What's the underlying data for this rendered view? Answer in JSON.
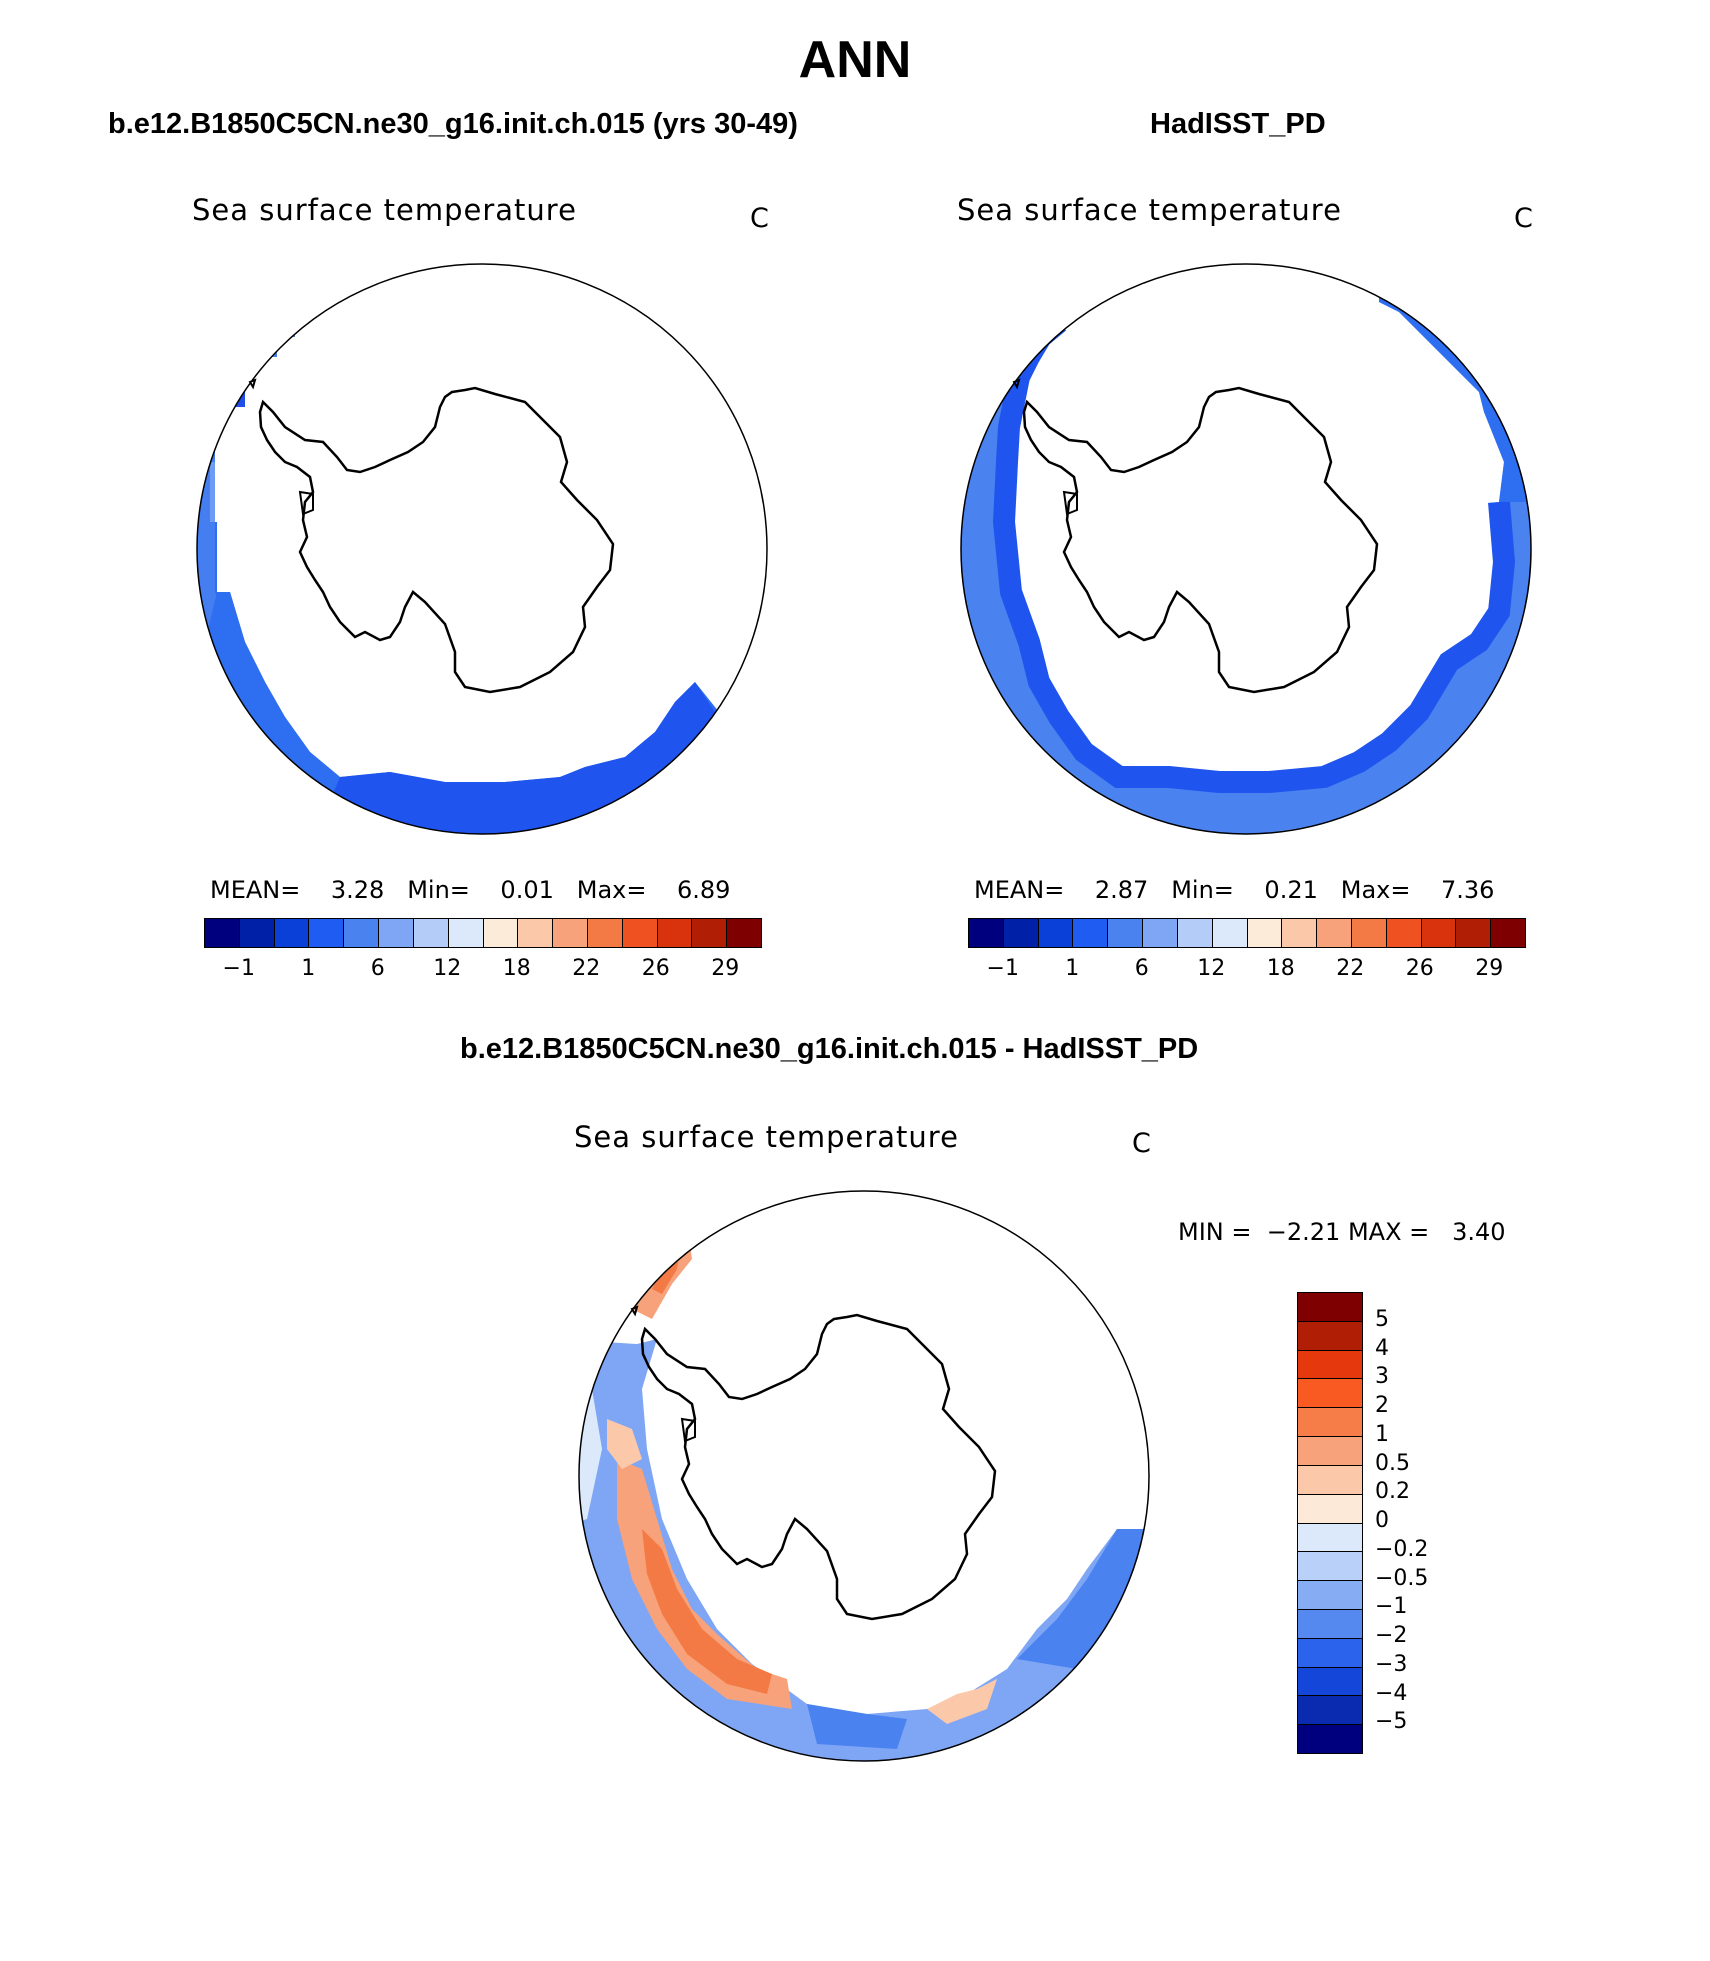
{
  "main_title": "ANN",
  "panel_model": {
    "case_title": "b.e12.B1850C5CN.ne30_g16.init.ch.015 (yrs 30-49)",
    "field": "Sea surface temperature",
    "units": "C",
    "mean_label": "MEAN=",
    "mean_value": "3.28",
    "min_label": "Min=",
    "min_value": "0.01",
    "max_label": "Max=",
    "max_value": "6.89"
  },
  "panel_obs": {
    "case_title": "HadISST_PD",
    "field": "Sea surface temperature",
    "units": "C",
    "mean_label": "MEAN=",
    "mean_value": "2.87",
    "min_label": "Min=",
    "min_value": "0.21",
    "max_label": "Max=",
    "max_value": "7.36"
  },
  "panel_diff": {
    "case_title": "b.e12.B1850C5CN.ne30_g16.init.ch.015 - HadISST_PD",
    "field": "Sea surface temperature",
    "units": "C",
    "min_label": "MIN =",
    "min_value": "−2.21",
    "max_label": "MAX =",
    "max_value": "3.40"
  },
  "abs_colorbar": {
    "colors": [
      "#00007f",
      "#0020a8",
      "#0a3fd8",
      "#1f5cf2",
      "#4a82f0",
      "#7ea6f4",
      "#b4ccf8",
      "#dce9fb",
      "#fdebd9",
      "#fbc9aa",
      "#f7a27a",
      "#f47a45",
      "#ef5220",
      "#d9330e",
      "#b01e06",
      "#7f0000"
    ],
    "labels": [
      "−1",
      "1",
      "6",
      "12",
      "18",
      "22",
      "26",
      "29"
    ]
  },
  "diff_colorbar": {
    "colors": [
      "#7f0000",
      "#b01e06",
      "#e5380c",
      "#f95a22",
      "#f77d48",
      "#f7a27a",
      "#fbc8aa",
      "#fde9d8",
      "#dce9fb",
      "#b9d0f8",
      "#86acf4",
      "#5589f0",
      "#2c63ec",
      "#1446d9",
      "#0a2ab0",
      "#00007f"
    ],
    "labels": [
      "5",
      "4",
      "3",
      "2",
      "1",
      "0.5",
      "0.2",
      "0",
      "−0.2",
      "−0.5",
      "−1",
      "−2",
      "−3",
      "−4",
      "−5"
    ]
  }
}
